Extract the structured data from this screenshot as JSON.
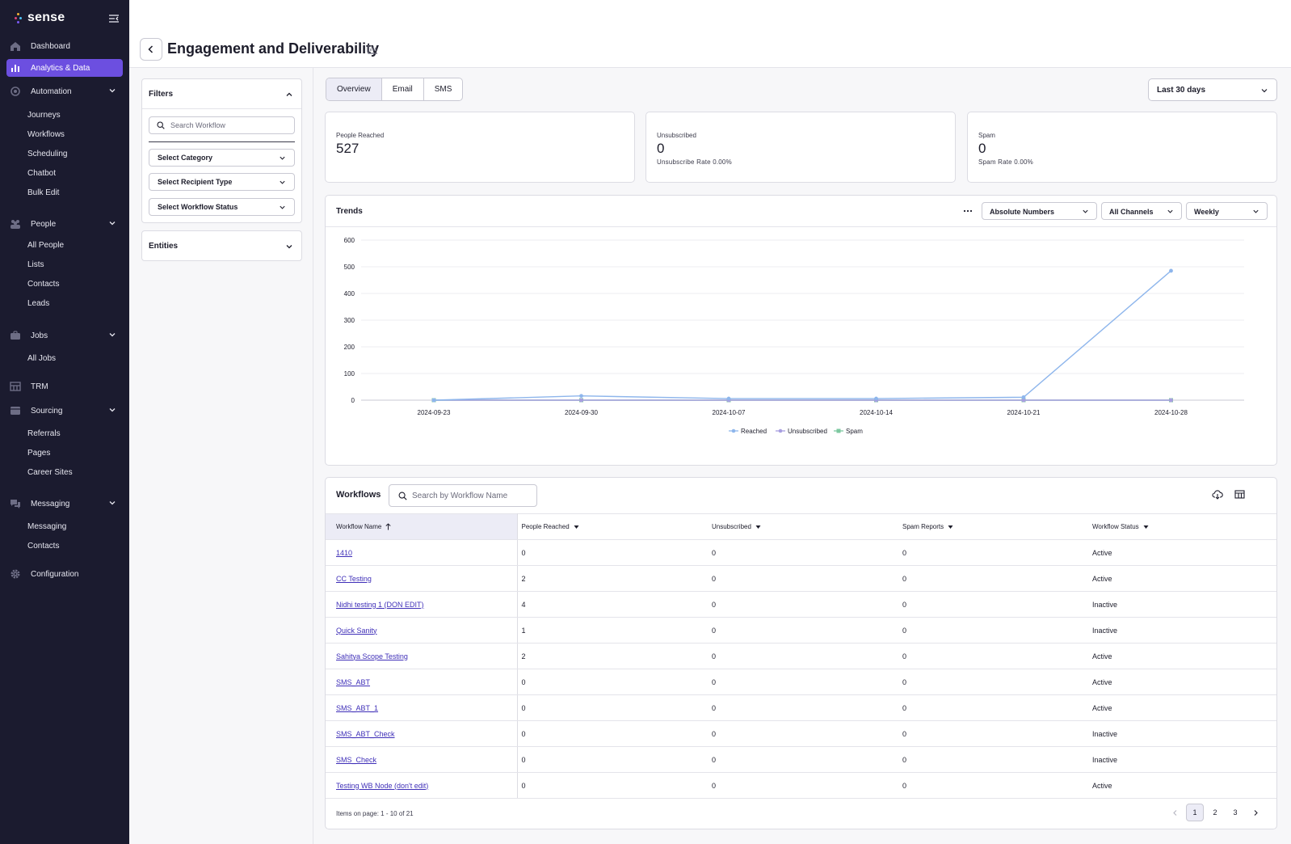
{
  "app": {
    "name": "sense"
  },
  "colors": {
    "accent": "#6c4fe0",
    "sidebar": "#1b1b2f",
    "reached": "#8eb6ec",
    "unsubscribed": "#a89fe0",
    "spam": "#7dc8a0",
    "link": "#3f2fb8"
  },
  "sidebar": {
    "dashboard": "Dashboard",
    "analytics": "Analytics & Data",
    "automation": "Automation",
    "automation_items": [
      "Journeys",
      "Workflows",
      "Scheduling",
      "Chatbot",
      "Bulk Edit"
    ],
    "people": "People",
    "people_items": [
      "All People",
      "Lists",
      "Contacts",
      "Leads"
    ],
    "jobs": "Jobs",
    "jobs_items": [
      "All Jobs"
    ],
    "trm": "TRM",
    "sourcing": "Sourcing",
    "sourcing_items": [
      "Referrals",
      "Pages",
      "Career Sites"
    ],
    "messaging": "Messaging",
    "messaging_items": [
      "Messaging",
      "Contacts"
    ],
    "configuration": "Configuration"
  },
  "header": {
    "title": "Engagement and Deliverability"
  },
  "filters": {
    "title": "Filters",
    "search_placeholder": "Search Workflow",
    "category": "Select Category",
    "recipient_type": "Select Recipient Type",
    "workflow_status": "Select Workflow Status",
    "entities": "Entities"
  },
  "tabs": [
    "Overview",
    "Email",
    "SMS"
  ],
  "date_range": "Last 30 days",
  "cards": {
    "reached": {
      "label": "People Reached",
      "value": "527"
    },
    "unsubscribed": {
      "label": "Unsubscribed",
      "value": "0",
      "sub": "Unsubscribe Rate 0.00%"
    },
    "spam": {
      "label": "Spam",
      "value": "0",
      "sub": "Spam Rate 0.00%"
    }
  },
  "trends": {
    "title": "Trends",
    "mode": "Absolute Numbers",
    "channels": "All Channels",
    "interval": "Weekly"
  },
  "chart_data": {
    "type": "line",
    "x": [
      "2024-09-23",
      "2024-09-30",
      "2024-10-07",
      "2024-10-14",
      "2024-10-21",
      "2024-10-28"
    ],
    "ylim": [
      0,
      600
    ],
    "yticks": [
      0,
      100,
      200,
      300,
      400,
      500,
      600
    ],
    "grid": true,
    "legend_position": "bottom",
    "series": [
      {
        "name": "Reached",
        "values": [
          0,
          16,
          6,
          6,
          11,
          485
        ],
        "color": "#8eb6ec"
      },
      {
        "name": "Unsubscribed",
        "values": [
          0,
          0,
          0,
          0,
          0,
          0
        ],
        "color": "#a89fe0"
      },
      {
        "name": "Spam",
        "values": [
          0,
          0,
          0,
          0,
          0,
          0
        ],
        "color": "#7dc8a0"
      }
    ]
  },
  "workflows": {
    "title": "Workflows",
    "search_placeholder": "Search by Workflow Name",
    "columns": [
      "Workflow Name",
      "People Reached",
      "Unsubscribed",
      "Spam Reports",
      "Workflow Status"
    ],
    "rows": [
      [
        "1410",
        "0",
        "0",
        "0",
        "Active"
      ],
      [
        "CC Testing",
        "2",
        "0",
        "0",
        "Active"
      ],
      [
        "Nidhi testing 1 (DON EDIT)",
        "4",
        "0",
        "0",
        "Inactive"
      ],
      [
        "Quick Sanity",
        "1",
        "0",
        "0",
        "Inactive"
      ],
      [
        "Sahitya Scope Testing",
        "2",
        "0",
        "0",
        "Active"
      ],
      [
        "SMS_ABT",
        "0",
        "0",
        "0",
        "Active"
      ],
      [
        "SMS_ABT_1",
        "0",
        "0",
        "0",
        "Active"
      ],
      [
        "SMS_ABT_Check",
        "0",
        "0",
        "0",
        "Inactive"
      ],
      [
        "SMS_Check",
        "0",
        "0",
        "0",
        "Inactive"
      ],
      [
        "Testing WB Node (don't edit)",
        "0",
        "0",
        "0",
        "Active"
      ]
    ],
    "pager_info": "Items on page: 1 - 10 of 21",
    "pages": [
      "1",
      "2",
      "3"
    ]
  }
}
